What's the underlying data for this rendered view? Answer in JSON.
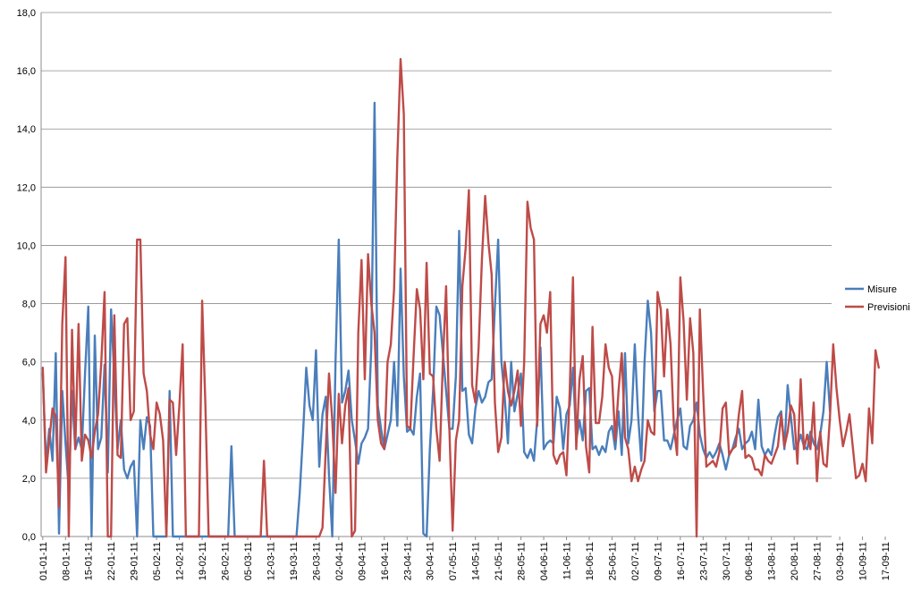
{
  "chart_data": {
    "type": "line",
    "title": "",
    "xlabel": "",
    "ylabel": "",
    "ylim": [
      0,
      18
    ],
    "grid": true,
    "legend_position": "right",
    "y_ticks": [
      "0,0",
      "2,0",
      "4,0",
      "6,0",
      "8,0",
      "10,0",
      "12,0",
      "14,0",
      "16,0",
      "18,0"
    ],
    "x_tick_labels": [
      "01-01-11",
      "08-01-11",
      "15-01-11",
      "22-01-11",
      "29-01-11",
      "05-02-11",
      "12-02-11",
      "19-02-11",
      "26-02-11",
      "05-03-11",
      "12-03-11",
      "19-03-11",
      "26-03-11",
      "02-04-11",
      "09-04-11",
      "16-04-11",
      "23-04-11",
      "30-04-11",
      "07-05-11",
      "14-05-11",
      "21-05-11",
      "28-05-11",
      "04-06-11",
      "11-06-11",
      "18-06-11",
      "25-06-11",
      "02-07-11",
      "09-07-11",
      "16-07-11",
      "23-07-11",
      "30-07-11",
      "06-08-11",
      "13-08-11",
      "20-08-11",
      "27-08-11",
      "03-09-11",
      "10-09-11",
      "17-09-11"
    ],
    "series": [
      {
        "name": "Misure",
        "color": "#4a7ebb",
        "values": [
          5.6,
          2.5,
          3.7,
          2.6,
          6.3,
          0.1,
          5.0,
          3.2,
          1.6,
          5.0,
          3.0,
          3.4,
          3.0,
          5.6,
          7.9,
          0.0,
          6.9,
          3.0,
          3.4,
          5.9,
          2.2,
          7.8,
          5.5,
          3.0,
          4.0,
          2.3,
          2.0,
          2.4,
          2.6,
          0.0,
          4.0,
          3.0,
          4.1,
          3.8,
          0.0,
          0.0,
          0.0,
          0.0,
          0.0,
          5.0,
          0.0,
          0.0,
          0.0,
          0.0,
          0.0,
          0.0,
          0.0,
          0.0,
          0.0,
          0.0,
          0.0,
          0.0,
          0.0,
          0.0,
          0.0,
          0.0,
          0.0,
          0.0,
          3.1,
          0.0,
          0.0,
          0.0,
          0.0,
          0.0,
          0.0,
          0.0,
          0.0,
          0.0,
          0.0,
          0.0,
          0.0,
          0.0,
          0.0,
          0.0,
          0.0,
          0.0,
          0.0,
          0.0,
          0.0,
          1.5,
          3.5,
          5.8,
          4.5,
          4.0,
          6.4,
          2.4,
          4.2,
          4.8,
          2.1,
          0.0,
          6.0,
          10.2,
          4.6,
          5.0,
          5.7,
          4.0,
          3.3,
          2.5,
          3.2,
          3.4,
          3.7,
          6.5,
          14.9,
          4.5,
          3.7,
          3.0,
          3.5,
          4.0,
          6.0,
          3.8,
          9.2,
          5.5,
          3.6,
          3.7,
          3.5,
          4.8,
          5.6,
          0.1,
          0.0,
          3.0,
          5.0,
          7.9,
          7.6,
          6.3,
          5.0,
          3.7,
          3.7,
          5.5,
          10.5,
          5.0,
          5.1,
          3.5,
          3.2,
          4.4,
          5.0,
          4.6,
          4.8,
          5.3,
          5.4,
          7.9,
          10.2,
          6.0,
          4.8,
          3.2,
          6.0,
          4.3,
          4.9,
          5.6,
          2.9,
          2.7,
          3.0,
          2.6,
          4.0,
          6.5,
          3.0,
          3.2,
          3.3,
          3.2,
          4.8,
          4.4,
          3.0,
          4.2,
          4.5,
          5.8,
          3.3,
          4.0,
          3.3,
          5.0,
          5.1,
          3.0,
          3.1,
          2.8,
          3.1,
          2.9,
          3.6,
          3.8,
          3.0,
          4.3,
          2.8,
          6.3,
          3.2,
          4.0,
          6.6,
          4.2,
          2.6,
          6.0,
          8.1,
          7.0,
          4.3,
          5.0,
          5.0,
          3.3,
          3.3,
          3.0,
          3.5,
          4.0,
          4.4,
          3.1,
          3.0,
          3.8,
          4.0,
          4.6,
          3.5,
          3.0,
          2.7,
          2.9,
          2.7,
          2.9,
          3.2,
          2.8,
          2.3,
          2.8,
          3.0,
          3.4,
          3.7,
          3.0,
          3.2,
          3.3,
          3.6,
          3.0,
          4.7,
          3.1,
          2.8,
          3.0,
          2.8,
          3.5,
          4.1,
          4.3,
          3.0,
          5.2,
          4.1,
          3.0,
          3.1,
          3.5,
          3.1,
          3.0,
          3.6,
          3.2,
          3.0,
          3.5,
          4.3,
          6.0,
          4.3
        ],
        "peak_note": ""
      },
      {
        "name": "Previsioni",
        "color": "#be4b48",
        "values": [
          5.8,
          2.2,
          3.3,
          4.4,
          4.1,
          1.0,
          7.3,
          9.6,
          0.0,
          7.1,
          3.0,
          7.3,
          2.6,
          3.5,
          3.3,
          2.7,
          3.6,
          4.2,
          6.0,
          8.4,
          0.0,
          0.0,
          7.6,
          2.8,
          2.7,
          7.3,
          7.5,
          4.0,
          4.3,
          10.2,
          10.2,
          5.6,
          5.0,
          3.5,
          3.0,
          4.6,
          4.2,
          3.3,
          0.0,
          4.7,
          4.6,
          2.8,
          4.5,
          6.6,
          0.0,
          0.0,
          0.0,
          0.0,
          0.0,
          8.1,
          4.5,
          0.0,
          0.0,
          0.0,
          0.0,
          0.0,
          0.0,
          0.0,
          0.0,
          0.0,
          0.0,
          0.0,
          0.0,
          0.0,
          0.0,
          0.0,
          0.0,
          0.0,
          2.6,
          0.0,
          0.0,
          0.0,
          0.0,
          0.0,
          0.0,
          0.0,
          0.0,
          0.0,
          0.0,
          0.0,
          0.0,
          0.0,
          0.0,
          0.0,
          0.0,
          0.0,
          0.3,
          3.0,
          5.6,
          4.0,
          1.5,
          4.9,
          3.2,
          4.5,
          5.1,
          0.0,
          0.2,
          7.0,
          9.5,
          5.4,
          9.7,
          8.0,
          7.0,
          4.0,
          3.2,
          3.0,
          6.0,
          6.6,
          8.5,
          13.0,
          16.4,
          14.5,
          3.8,
          3.7,
          6.2,
          8.5,
          7.8,
          5.4,
          9.4,
          5.6,
          5.5,
          3.7,
          2.6,
          6.0,
          8.6,
          3.7,
          0.2,
          3.3,
          4.0,
          8.6,
          9.9,
          11.9,
          5.2,
          4.6,
          6.5,
          9.5,
          11.7,
          10.1,
          9.0,
          4.6,
          2.9,
          3.4,
          6.0,
          5.0,
          4.5,
          5.0,
          5.7,
          3.8,
          6.0,
          11.5,
          10.6,
          10.2,
          3.8,
          7.3,
          7.6,
          7.0,
          8.4,
          2.8,
          2.5,
          2.8,
          2.9,
          2.1,
          5.0,
          8.9,
          3.0,
          5.4,
          6.2,
          3.1,
          2.2,
          7.2,
          3.9,
          3.9,
          4.8,
          6.6,
          5.8,
          5.5,
          3.3,
          5.0,
          6.3,
          3.4,
          3.0,
          1.9,
          2.4,
          1.9,
          2.3,
          2.6,
          4.0,
          3.6,
          3.5,
          8.4,
          7.8,
          5.5,
          7.8,
          6.6,
          3.8,
          2.8,
          8.9,
          7.4,
          4.7,
          7.5,
          6.3,
          0.0,
          7.8,
          5.0,
          2.4,
          2.5,
          2.6,
          2.4,
          2.9,
          4.4,
          4.6,
          2.8,
          3.0,
          3.1,
          4.2,
          5.0,
          2.7,
          2.8,
          2.7,
          2.3,
          2.3,
          2.1,
          2.8,
          2.6,
          2.5,
          2.8,
          3.1,
          4.2,
          3.1,
          3.6,
          4.5,
          4.2,
          2.5,
          5.4,
          3.0,
          3.5,
          3.0,
          4.6,
          1.9,
          3.6,
          2.5,
          2.4,
          4.1,
          6.6,
          5.1,
          4.0,
          3.1,
          3.6,
          4.2,
          3.1,
          2.0,
          2.1,
          2.5,
          1.9,
          4.4,
          3.2,
          6.4,
          5.8
        ],
        "peak_note": ""
      }
    ]
  }
}
